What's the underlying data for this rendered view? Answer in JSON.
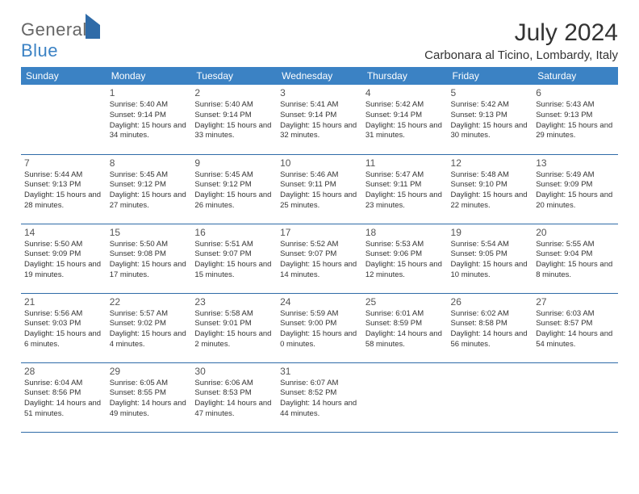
{
  "logo": {
    "general": "General",
    "blue": "Blue"
  },
  "title": "July 2024",
  "location": "Carbonara al Ticino, Lombardy, Italy",
  "dayHeaders": [
    "Sunday",
    "Monday",
    "Tuesday",
    "Wednesday",
    "Thursday",
    "Friday",
    "Saturday"
  ],
  "colors": {
    "header_bg": "#3b82c4",
    "border": "#2f6ba8",
    "text": "#333333",
    "logo_gray": "#666666",
    "logo_blue": "#3b82c4"
  },
  "typography": {
    "title_fontsize": 30,
    "location_fontsize": 15,
    "header_fontsize": 12,
    "daynum_fontsize": 12,
    "details_fontsize": 9.5
  },
  "weeks": [
    [
      null,
      {
        "n": "1",
        "sr": "5:40 AM",
        "ss": "9:14 PM",
        "dl": "15 hours and 34 minutes."
      },
      {
        "n": "2",
        "sr": "5:40 AM",
        "ss": "9:14 PM",
        "dl": "15 hours and 33 minutes."
      },
      {
        "n": "3",
        "sr": "5:41 AM",
        "ss": "9:14 PM",
        "dl": "15 hours and 32 minutes."
      },
      {
        "n": "4",
        "sr": "5:42 AM",
        "ss": "9:14 PM",
        "dl": "15 hours and 31 minutes."
      },
      {
        "n": "5",
        "sr": "5:42 AM",
        "ss": "9:13 PM",
        "dl": "15 hours and 30 minutes."
      },
      {
        "n": "6",
        "sr": "5:43 AM",
        "ss": "9:13 PM",
        "dl": "15 hours and 29 minutes."
      }
    ],
    [
      {
        "n": "7",
        "sr": "5:44 AM",
        "ss": "9:13 PM",
        "dl": "15 hours and 28 minutes."
      },
      {
        "n": "8",
        "sr": "5:45 AM",
        "ss": "9:12 PM",
        "dl": "15 hours and 27 minutes."
      },
      {
        "n": "9",
        "sr": "5:45 AM",
        "ss": "9:12 PM",
        "dl": "15 hours and 26 minutes."
      },
      {
        "n": "10",
        "sr": "5:46 AM",
        "ss": "9:11 PM",
        "dl": "15 hours and 25 minutes."
      },
      {
        "n": "11",
        "sr": "5:47 AM",
        "ss": "9:11 PM",
        "dl": "15 hours and 23 minutes."
      },
      {
        "n": "12",
        "sr": "5:48 AM",
        "ss": "9:10 PM",
        "dl": "15 hours and 22 minutes."
      },
      {
        "n": "13",
        "sr": "5:49 AM",
        "ss": "9:09 PM",
        "dl": "15 hours and 20 minutes."
      }
    ],
    [
      {
        "n": "14",
        "sr": "5:50 AM",
        "ss": "9:09 PM",
        "dl": "15 hours and 19 minutes."
      },
      {
        "n": "15",
        "sr": "5:50 AM",
        "ss": "9:08 PM",
        "dl": "15 hours and 17 minutes."
      },
      {
        "n": "16",
        "sr": "5:51 AM",
        "ss": "9:07 PM",
        "dl": "15 hours and 15 minutes."
      },
      {
        "n": "17",
        "sr": "5:52 AM",
        "ss": "9:07 PM",
        "dl": "15 hours and 14 minutes."
      },
      {
        "n": "18",
        "sr": "5:53 AM",
        "ss": "9:06 PM",
        "dl": "15 hours and 12 minutes."
      },
      {
        "n": "19",
        "sr": "5:54 AM",
        "ss": "9:05 PM",
        "dl": "15 hours and 10 minutes."
      },
      {
        "n": "20",
        "sr": "5:55 AM",
        "ss": "9:04 PM",
        "dl": "15 hours and 8 minutes."
      }
    ],
    [
      {
        "n": "21",
        "sr": "5:56 AM",
        "ss": "9:03 PM",
        "dl": "15 hours and 6 minutes."
      },
      {
        "n": "22",
        "sr": "5:57 AM",
        "ss": "9:02 PM",
        "dl": "15 hours and 4 minutes."
      },
      {
        "n": "23",
        "sr": "5:58 AM",
        "ss": "9:01 PM",
        "dl": "15 hours and 2 minutes."
      },
      {
        "n": "24",
        "sr": "5:59 AM",
        "ss": "9:00 PM",
        "dl": "15 hours and 0 minutes."
      },
      {
        "n": "25",
        "sr": "6:01 AM",
        "ss": "8:59 PM",
        "dl": "14 hours and 58 minutes."
      },
      {
        "n": "26",
        "sr": "6:02 AM",
        "ss": "8:58 PM",
        "dl": "14 hours and 56 minutes."
      },
      {
        "n": "27",
        "sr": "6:03 AM",
        "ss": "8:57 PM",
        "dl": "14 hours and 54 minutes."
      }
    ],
    [
      {
        "n": "28",
        "sr": "6:04 AM",
        "ss": "8:56 PM",
        "dl": "14 hours and 51 minutes."
      },
      {
        "n": "29",
        "sr": "6:05 AM",
        "ss": "8:55 PM",
        "dl": "14 hours and 49 minutes."
      },
      {
        "n": "30",
        "sr": "6:06 AM",
        "ss": "8:53 PM",
        "dl": "14 hours and 47 minutes."
      },
      {
        "n": "31",
        "sr": "6:07 AM",
        "ss": "8:52 PM",
        "dl": "14 hours and 44 minutes."
      },
      null,
      null,
      null
    ]
  ]
}
